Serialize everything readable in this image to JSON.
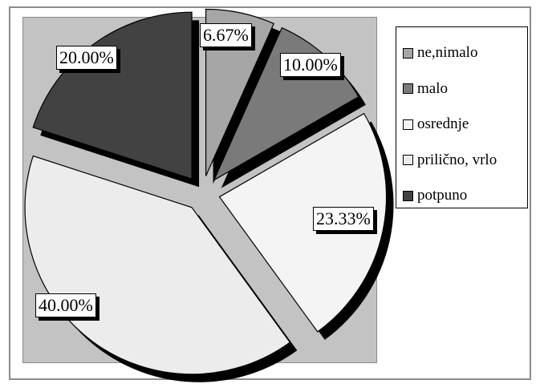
{
  "chart_data": {
    "type": "pie",
    "title": "",
    "exploded": true,
    "shadow": true,
    "legend_position": "right",
    "slices": [
      {
        "name": "ne,nimalo",
        "value": 6.67,
        "label": "6.67%",
        "color": "#a6a6a6"
      },
      {
        "name": "malo",
        "value": 10.0,
        "label": "10.00%",
        "color": "#7a7a7a"
      },
      {
        "name": "osrednje",
        "value": 23.33,
        "label": "23.33%",
        "color": "#f4f4f4"
      },
      {
        "name": "prilično, vrlo",
        "value": 40.0,
        "label": "40.00%",
        "color": "#ececec"
      },
      {
        "name": "potpuno",
        "value": 20.0,
        "label": "20.00%",
        "color": "#424242"
      }
    ]
  },
  "colors": {
    "plot_background": "#c3c3c3",
    "shadow": "#000000",
    "outline": "#000000"
  }
}
